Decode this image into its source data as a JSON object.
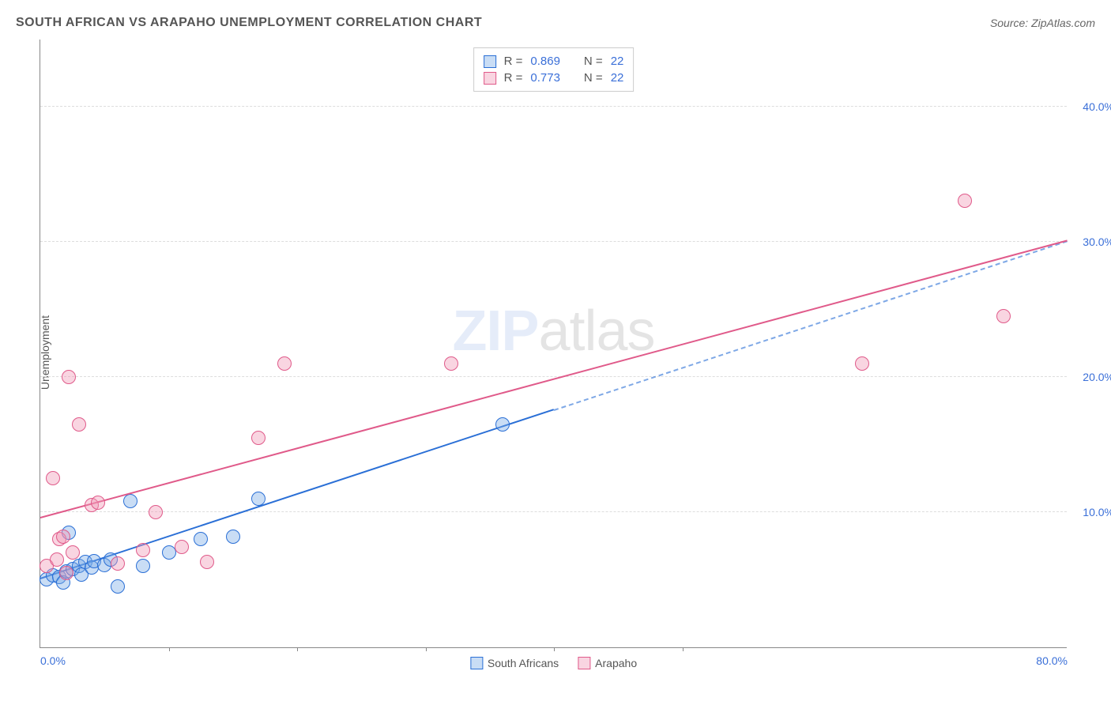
{
  "title": "SOUTH AFRICAN VS ARAPAHO UNEMPLOYMENT CORRELATION CHART",
  "source_prefix": "Source: ",
  "source_name": "ZipAtlas.com",
  "ylabel": "Unemployment",
  "watermark_zip": "ZIP",
  "watermark_rest": "atlas",
  "chart": {
    "type": "scatter-regression",
    "background_color": "#ffffff",
    "grid_color": "#dddddd",
    "axis_color": "#888888",
    "tick_label_color": "#3a6fd8",
    "xlim": [
      0,
      80
    ],
    "ylim": [
      0,
      45
    ],
    "xticks": [
      0,
      80
    ],
    "xtick_labels": [
      "0.0%",
      "80.0%"
    ],
    "xtick_minor": [
      10,
      20,
      30,
      40,
      50
    ],
    "yticks": [
      10,
      20,
      30,
      40
    ],
    "ytick_labels": [
      "10.0%",
      "20.0%",
      "30.0%",
      "40.0%"
    ],
    "point_radius": 9,
    "point_border_width": 1.5,
    "point_fill_opacity": 0.35,
    "line_width": 2
  },
  "series": [
    {
      "name": "South Africans",
      "color_stroke": "#2a6fd6",
      "color_fill": "rgba(120,170,230,0.4)",
      "R_label": "R =",
      "R": "0.869",
      "N_label": "N =",
      "N": "22",
      "reg_solid": {
        "x1": 0,
        "y1": 5.0,
        "x2": 40,
        "y2": 17.5
      },
      "reg_dash": {
        "x1": 40,
        "y1": 17.5,
        "x2": 80,
        "y2": 30.0
      },
      "points": [
        {
          "x": 0.5,
          "y": 5.0
        },
        {
          "x": 1.0,
          "y": 5.3
        },
        {
          "x": 1.5,
          "y": 5.2
        },
        {
          "x": 1.8,
          "y": 4.8
        },
        {
          "x": 2.0,
          "y": 5.6
        },
        {
          "x": 2.2,
          "y": 8.5
        },
        {
          "x": 2.5,
          "y": 5.8
        },
        {
          "x": 3.0,
          "y": 6.0
        },
        {
          "x": 3.2,
          "y": 5.4
        },
        {
          "x": 3.5,
          "y": 6.3
        },
        {
          "x": 4.0,
          "y": 5.9
        },
        {
          "x": 4.2,
          "y": 6.4
        },
        {
          "x": 5.0,
          "y": 6.1
        },
        {
          "x": 5.5,
          "y": 6.5
        },
        {
          "x": 6.0,
          "y": 4.5
        },
        {
          "x": 7.0,
          "y": 10.8
        },
        {
          "x": 8.0,
          "y": 6.0
        },
        {
          "x": 10.0,
          "y": 7.0
        },
        {
          "x": 12.5,
          "y": 8.0
        },
        {
          "x": 15.0,
          "y": 8.2
        },
        {
          "x": 17.0,
          "y": 11.0
        },
        {
          "x": 36.0,
          "y": 16.5
        }
      ]
    },
    {
      "name": "Arapaho",
      "color_stroke": "#e05a8a",
      "color_fill": "rgba(240,150,180,0.4)",
      "R_label": "R =",
      "R": "0.773",
      "N_label": "N =",
      "N": "22",
      "reg_solid": {
        "x1": 0,
        "y1": 9.5,
        "x2": 80,
        "y2": 30.0
      },
      "reg_dash": null,
      "points": [
        {
          "x": 0.5,
          "y": 6.0
        },
        {
          "x": 1.0,
          "y": 12.5
        },
        {
          "x": 1.3,
          "y": 6.5
        },
        {
          "x": 1.5,
          "y": 8.0
        },
        {
          "x": 1.8,
          "y": 8.2
        },
        {
          "x": 2.2,
          "y": 20.0
        },
        {
          "x": 2.5,
          "y": 7.0
        },
        {
          "x": 3.0,
          "y": 16.5
        },
        {
          "x": 4.0,
          "y": 10.5
        },
        {
          "x": 4.5,
          "y": 10.7
        },
        {
          "x": 6.0,
          "y": 6.2
        },
        {
          "x": 8.0,
          "y": 7.2
        },
        {
          "x": 9.0,
          "y": 10.0
        },
        {
          "x": 11.0,
          "y": 7.4
        },
        {
          "x": 13.0,
          "y": 6.3
        },
        {
          "x": 17.0,
          "y": 15.5
        },
        {
          "x": 19.0,
          "y": 21.0
        },
        {
          "x": 32.0,
          "y": 21.0
        },
        {
          "x": 64.0,
          "y": 21.0
        },
        {
          "x": 72.0,
          "y": 33.0
        },
        {
          "x": 75.0,
          "y": 24.5
        },
        {
          "x": 2.0,
          "y": 5.5
        }
      ]
    }
  ],
  "legend": {
    "items": [
      "South Africans",
      "Arapaho"
    ]
  }
}
